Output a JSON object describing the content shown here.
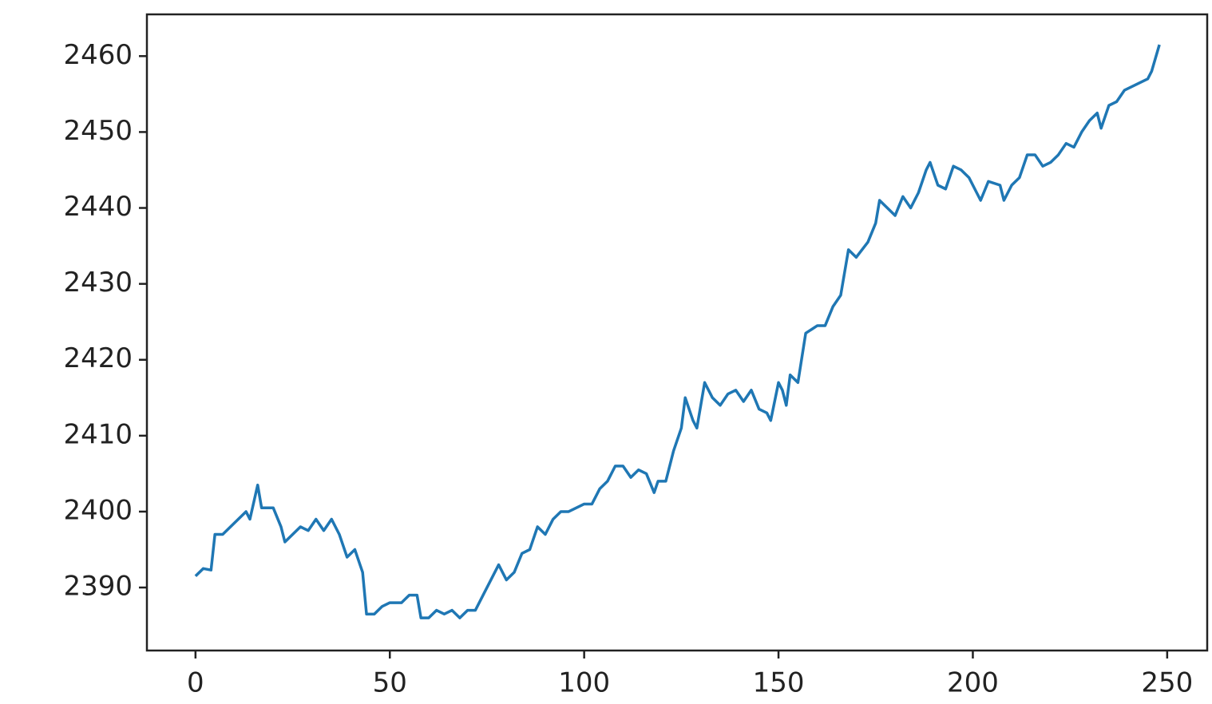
{
  "chart_data": {
    "type": "line",
    "x": [
      0,
      2,
      4,
      5,
      7,
      9,
      11,
      13,
      14,
      16,
      17,
      20,
      22,
      23,
      25,
      27,
      29,
      31,
      33,
      35,
      37,
      39,
      41,
      43,
      44,
      46,
      48,
      50,
      53,
      55,
      57,
      58,
      60,
      62,
      64,
      66,
      68,
      70,
      72,
      74,
      76,
      78,
      80,
      82,
      84,
      86,
      88,
      90,
      92,
      94,
      96,
      98,
      100,
      102,
      104,
      106,
      108,
      110,
      112,
      114,
      116,
      118,
      119,
      121,
      123,
      125,
      126,
      128,
      129,
      131,
      133,
      135,
      137,
      139,
      141,
      143,
      145,
      147,
      148,
      150,
      151,
      152,
      153,
      155,
      157,
      160,
      162,
      164,
      166,
      168,
      170,
      173,
      175,
      176,
      178,
      180,
      182,
      184,
      186,
      188,
      189,
      191,
      193,
      195,
      197,
      199,
      201,
      202,
      204,
      207,
      208,
      210,
      212,
      214,
      216,
      218,
      220,
      222,
      224,
      226,
      228,
      230,
      232,
      233,
      235,
      237,
      239,
      241,
      243,
      245,
      246,
      248
    ],
    "series": [
      {
        "color": "#1f77b4",
        "values": [
          2391.5,
          2392.5,
          2392.3,
          2397,
          2397,
          2398,
          2399,
          2400,
          2399,
          2403.5,
          2400.5,
          2400.5,
          2398,
          2396,
          2397,
          2398,
          2397.5,
          2399,
          2397.5,
          2399,
          2397,
          2394,
          2395,
          2392,
          2386.5,
          2386.5,
          2387.5,
          2388,
          2388,
          2389,
          2389,
          2386,
          2386,
          2387,
          2386.5,
          2387,
          2386,
          2387,
          2387,
          2389,
          2391,
          2393,
          2391,
          2392,
          2394.5,
          2395,
          2398,
          2397,
          2399,
          2400,
          2400,
          2400.5,
          2401,
          2401,
          2403,
          2404,
          2406,
          2406,
          2404.5,
          2405.5,
          2405,
          2402.5,
          2404,
          2404,
          2408,
          2411,
          2415,
          2412,
          2411,
          2417,
          2415,
          2414,
          2415.5,
          2416,
          2414.5,
          2416,
          2413.5,
          2413,
          2412,
          2417,
          2416,
          2414,
          2418,
          2417,
          2423.5,
          2424.5,
          2424.5,
          2427,
          2428.5,
          2434.5,
          2433.5,
          2435.5,
          2438,
          2441,
          2440,
          2439,
          2441.5,
          2440,
          2442,
          2445,
          2446,
          2443,
          2442.5,
          2445.5,
          2445,
          2444,
          2442,
          2441,
          2443.5,
          2443,
          2441,
          2443,
          2444,
          2447,
          2447,
          2445.5,
          2446,
          2447,
          2448.5,
          2448,
          2450,
          2451.5,
          2452.5,
          2450.5,
          2453.5,
          2454,
          2455.5,
          2456,
          2456.5,
          2457,
          2458,
          2461.5
        ]
      }
    ],
    "xlim": [
      -12.5,
      260.3
    ],
    "xticks": [
      0,
      50,
      100,
      150,
      200,
      250
    ],
    "ylim": [
      2381.7,
      2465.5
    ],
    "yticks": [
      2390,
      2400,
      2410,
      2420,
      2430,
      2440,
      2450,
      2460
    ]
  }
}
